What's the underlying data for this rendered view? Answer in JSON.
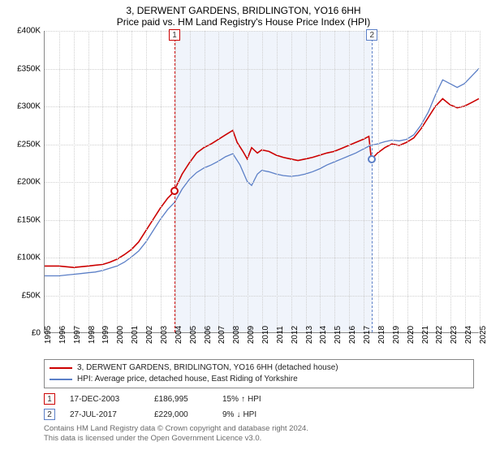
{
  "title": "3, DERWENT GARDENS, BRIDLINGTON, YO16 6HH",
  "subtitle": "Price paid vs. HM Land Registry's House Price Index (HPI)",
  "chart": {
    "type": "line",
    "background_color": "#ffffff",
    "grid_color": "#cfcfcf",
    "shade_color": "#e8eef9",
    "axis_color": "#888888",
    "font_size_ticks": 10,
    "y": {
      "min": 0,
      "max": 400000,
      "step": 50000,
      "prefix": "£",
      "suffix": "K",
      "ticks": [
        "£0",
        "£50K",
        "£100K",
        "£150K",
        "£200K",
        "£250K",
        "£300K",
        "£350K",
        "£400K"
      ]
    },
    "x": {
      "min": 1995,
      "max": 2025,
      "step": 1,
      "ticks": [
        "1995",
        "1996",
        "1997",
        "1998",
        "1999",
        "2000",
        "2001",
        "2002",
        "2003",
        "2004",
        "2005",
        "2006",
        "2007",
        "2008",
        "2009",
        "2010",
        "2011",
        "2012",
        "2013",
        "2014",
        "2015",
        "2016",
        "2017",
        "2018",
        "2019",
        "2020",
        "2021",
        "2022",
        "2023",
        "2024",
        "2025"
      ]
    },
    "shade_region": {
      "x_start": 2003.96,
      "x_end": 2017.57
    },
    "series": [
      {
        "name": "property",
        "color": "#cc0000",
        "width": 1.6,
        "points": [
          [
            1995.0,
            88
          ],
          [
            1995.5,
            88
          ],
          [
            1996.0,
            88
          ],
          [
            1996.5,
            87
          ],
          [
            1997.0,
            86
          ],
          [
            1997.5,
            87
          ],
          [
            1998.0,
            88
          ],
          [
            1998.5,
            89
          ],
          [
            1999.0,
            90
          ],
          [
            1999.5,
            93
          ],
          [
            2000.0,
            97
          ],
          [
            2000.5,
            103
          ],
          [
            2001.0,
            110
          ],
          [
            2001.5,
            120
          ],
          [
            2002.0,
            135
          ],
          [
            2002.5,
            150
          ],
          [
            2003.0,
            165
          ],
          [
            2003.5,
            178
          ],
          [
            2003.96,
            187
          ],
          [
            2004.0,
            190
          ],
          [
            2004.5,
            210
          ],
          [
            2005.0,
            225
          ],
          [
            2005.5,
            238
          ],
          [
            2006.0,
            245
          ],
          [
            2006.5,
            250
          ],
          [
            2007.0,
            256
          ],
          [
            2007.5,
            262
          ],
          [
            2008.0,
            268
          ],
          [
            2008.3,
            252
          ],
          [
            2008.7,
            240
          ],
          [
            2009.0,
            230
          ],
          [
            2009.3,
            245
          ],
          [
            2009.7,
            238
          ],
          [
            2010.0,
            242
          ],
          [
            2010.5,
            240
          ],
          [
            2011.0,
            235
          ],
          [
            2011.5,
            232
          ],
          [
            2012.0,
            230
          ],
          [
            2012.5,
            228
          ],
          [
            2013.0,
            230
          ],
          [
            2013.5,
            232
          ],
          [
            2014.0,
            235
          ],
          [
            2014.5,
            238
          ],
          [
            2015.0,
            240
          ],
          [
            2015.5,
            244
          ],
          [
            2016.0,
            248
          ],
          [
            2016.5,
            252
          ],
          [
            2017.0,
            256
          ],
          [
            2017.4,
            260
          ],
          [
            2017.57,
            229
          ],
          [
            2017.6,
            230
          ],
          [
            2018.0,
            238
          ],
          [
            2018.5,
            245
          ],
          [
            2019.0,
            250
          ],
          [
            2019.5,
            248
          ],
          [
            2020.0,
            252
          ],
          [
            2020.5,
            258
          ],
          [
            2021.0,
            270
          ],
          [
            2021.5,
            285
          ],
          [
            2022.0,
            300
          ],
          [
            2022.5,
            310
          ],
          [
            2023.0,
            302
          ],
          [
            2023.5,
            298
          ],
          [
            2024.0,
            300
          ],
          [
            2024.5,
            305
          ],
          [
            2025.0,
            310
          ]
        ]
      },
      {
        "name": "hpi",
        "color": "#5b7fc7",
        "width": 1.3,
        "points": [
          [
            1995.0,
            75
          ],
          [
            1995.5,
            75
          ],
          [
            1996.0,
            75
          ],
          [
            1996.5,
            76
          ],
          [
            1997.0,
            77
          ],
          [
            1997.5,
            78
          ],
          [
            1998.0,
            79
          ],
          [
            1998.5,
            80
          ],
          [
            1999.0,
            82
          ],
          [
            1999.5,
            85
          ],
          [
            2000.0,
            88
          ],
          [
            2000.5,
            93
          ],
          [
            2001.0,
            100
          ],
          [
            2001.5,
            108
          ],
          [
            2002.0,
            120
          ],
          [
            2002.5,
            135
          ],
          [
            2003.0,
            150
          ],
          [
            2003.5,
            163
          ],
          [
            2004.0,
            173
          ],
          [
            2004.5,
            190
          ],
          [
            2005.0,
            203
          ],
          [
            2005.5,
            212
          ],
          [
            2006.0,
            218
          ],
          [
            2006.5,
            222
          ],
          [
            2007.0,
            227
          ],
          [
            2007.5,
            233
          ],
          [
            2008.0,
            237
          ],
          [
            2008.5,
            222
          ],
          [
            2009.0,
            200
          ],
          [
            2009.3,
            195
          ],
          [
            2009.7,
            210
          ],
          [
            2010.0,
            215
          ],
          [
            2010.5,
            213
          ],
          [
            2011.0,
            210
          ],
          [
            2011.5,
            208
          ],
          [
            2012.0,
            207
          ],
          [
            2012.5,
            208
          ],
          [
            2013.0,
            210
          ],
          [
            2013.5,
            213
          ],
          [
            2014.0,
            217
          ],
          [
            2014.5,
            222
          ],
          [
            2015.0,
            226
          ],
          [
            2015.5,
            230
          ],
          [
            2016.0,
            234
          ],
          [
            2016.5,
            238
          ],
          [
            2017.0,
            243
          ],
          [
            2017.5,
            248
          ],
          [
            2018.0,
            250
          ],
          [
            2018.5,
            253
          ],
          [
            2019.0,
            255
          ],
          [
            2019.5,
            254
          ],
          [
            2020.0,
            256
          ],
          [
            2020.5,
            262
          ],
          [
            2021.0,
            275
          ],
          [
            2021.5,
            292
          ],
          [
            2022.0,
            315
          ],
          [
            2022.5,
            335
          ],
          [
            2023.0,
            330
          ],
          [
            2023.5,
            325
          ],
          [
            2024.0,
            330
          ],
          [
            2024.5,
            340
          ],
          [
            2025.0,
            350
          ]
        ]
      }
    ],
    "markers": [
      {
        "n": "1",
        "x": 2003.96,
        "y": 187,
        "color": "#cc0000"
      },
      {
        "n": "2",
        "x": 2017.57,
        "y": 229,
        "color": "#5b7fc7"
      }
    ]
  },
  "legend": {
    "s1": {
      "color": "#cc0000",
      "label": "3, DERWENT GARDENS, BRIDLINGTON, YO16 6HH (detached house)"
    },
    "s2": {
      "color": "#5b7fc7",
      "label": "HPI: Average price, detached house, East Riding of Yorkshire"
    }
  },
  "events": [
    {
      "n": "1",
      "color": "#cc0000",
      "date": "17-DEC-2003",
      "price": "£186,995",
      "diff": "15%",
      "dir": "↑",
      "ref": "HPI"
    },
    {
      "n": "2",
      "color": "#5b7fc7",
      "date": "27-JUL-2017",
      "price": "£229,000",
      "diff": "9%",
      "dir": "↓",
      "ref": "HPI"
    }
  ],
  "footer": {
    "l1": "Contains HM Land Registry data © Crown copyright and database right 2024.",
    "l2": "This data is licensed under the Open Government Licence v3.0."
  }
}
